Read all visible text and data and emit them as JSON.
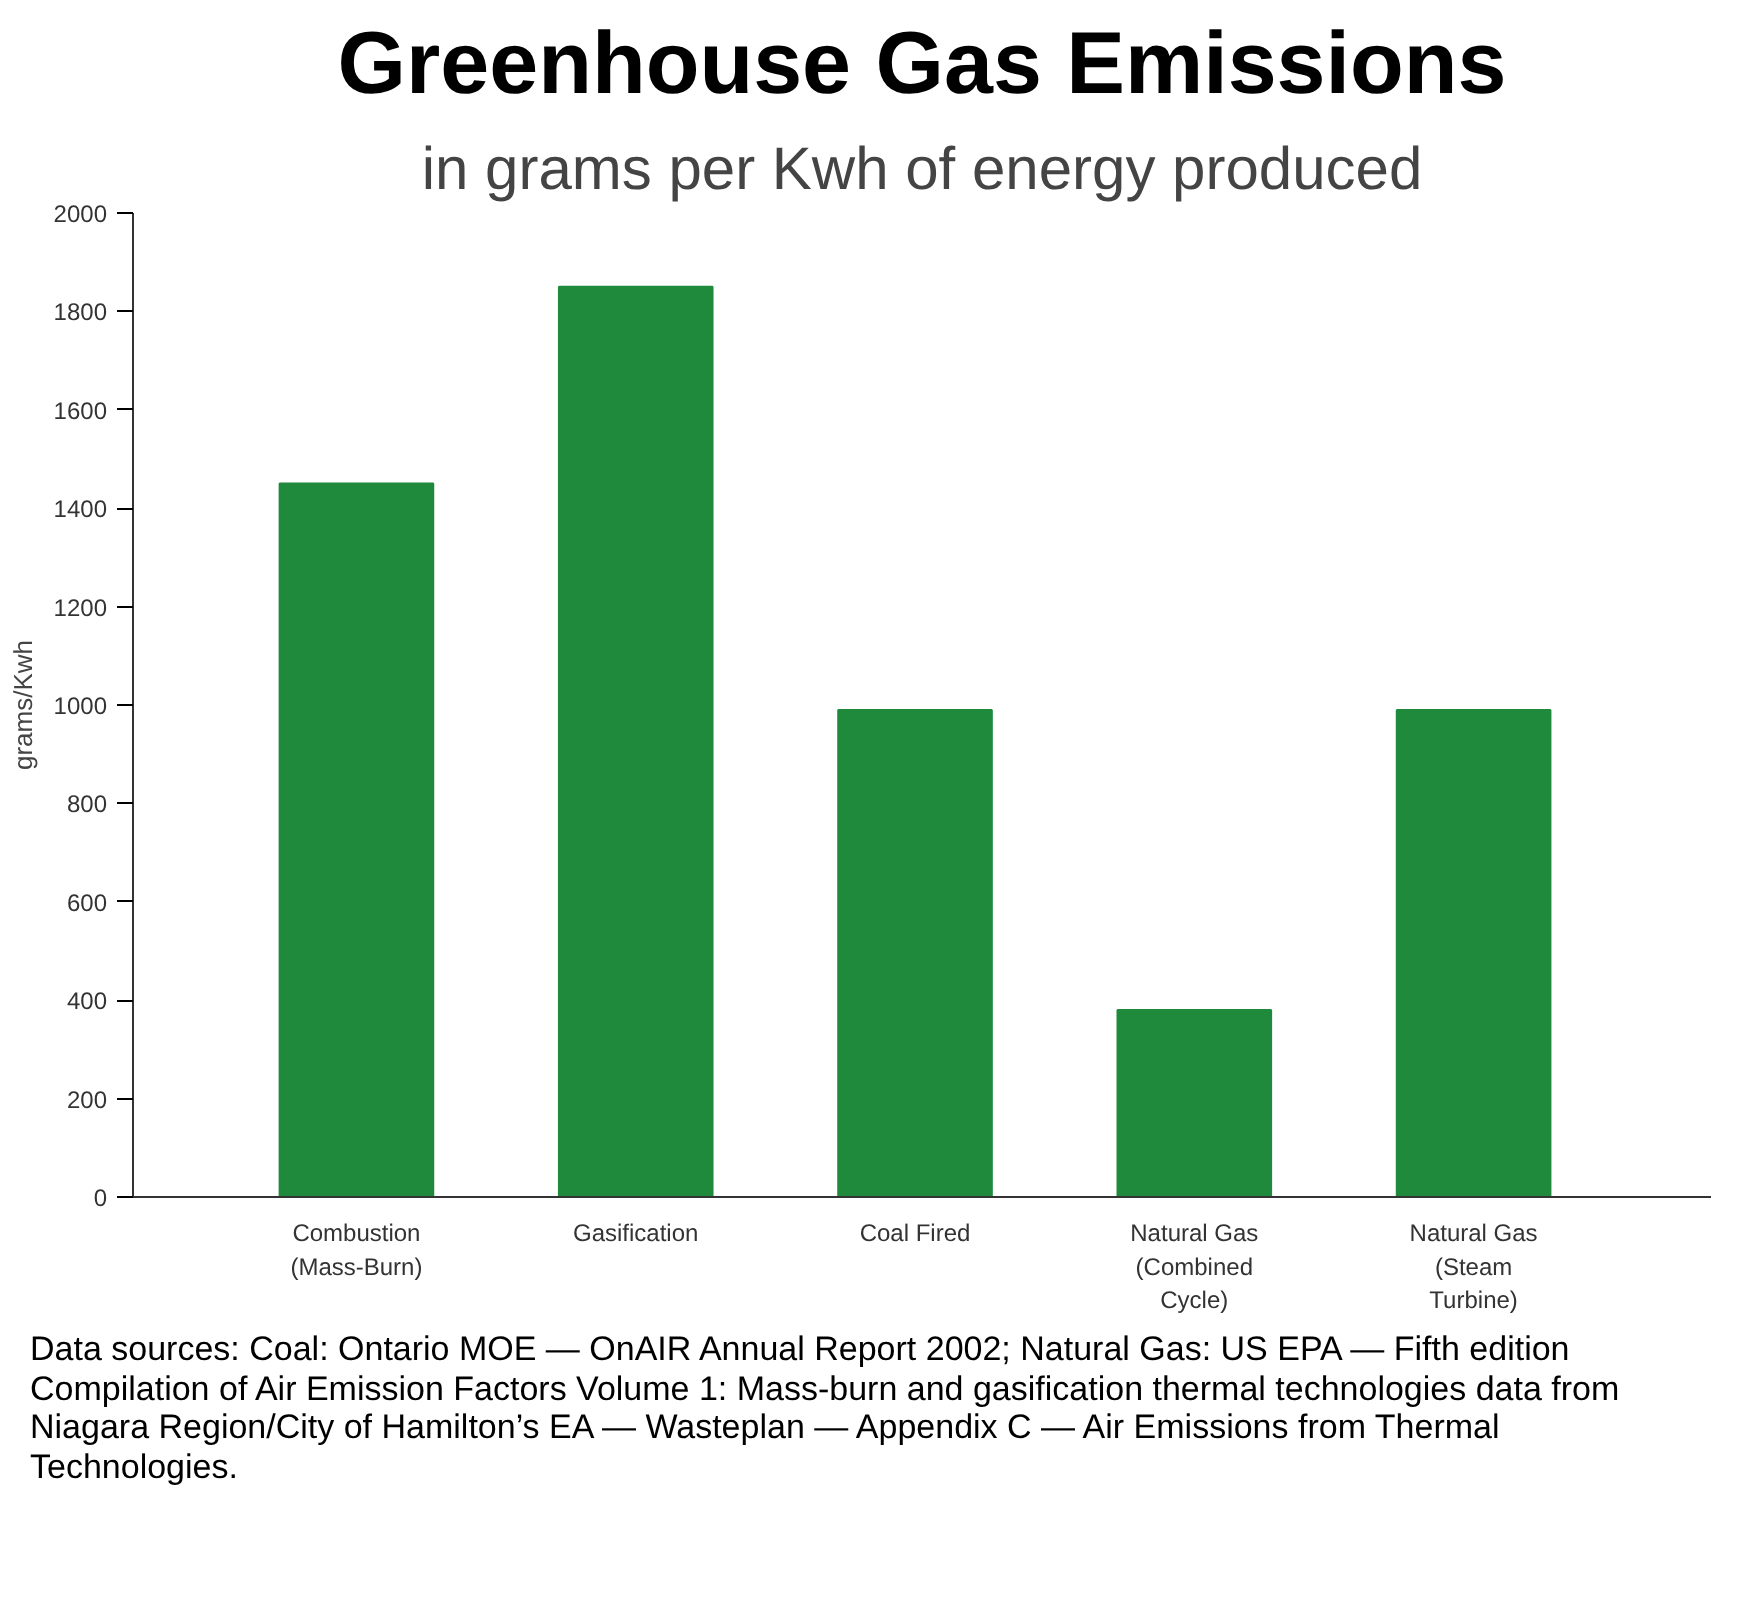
{
  "chart_data": {
    "type": "bar",
    "title": "Greenhouse Gas Emissions",
    "subtitle": "in grams per Kwh of energy produced",
    "ylabel": "grams/Kwh",
    "categories": [
      "Combustion\n(Mass-Burn)",
      "Gasification",
      "Coal Fired",
      "Natural Gas\n(Combined\nCycle)",
      "Natural Gas\n(Steam\nTurbine)"
    ],
    "values": [
      1450,
      1850,
      990,
      380,
      990
    ],
    "color": "#1f8a3c",
    "ylim": [
      0,
      2000
    ],
    "yticks": [
      0,
      200,
      400,
      600,
      800,
      1000,
      1200,
      1400,
      1600,
      1800,
      2000
    ],
    "grid": false,
    "annotations": [
      "Data sources: Coal: Ontario MOE — OnAIR Annual Report 2002; Natural Gas: US EPA — Fifth edition Compilation of Air Emission Factors Volume 1: Mass-burn and gasification thermal technologies data from Niagara Region/City of Hamilton’s EA — Wasteplan — Appendix C — Air Emissions from Thermal Technologies."
    ]
  }
}
